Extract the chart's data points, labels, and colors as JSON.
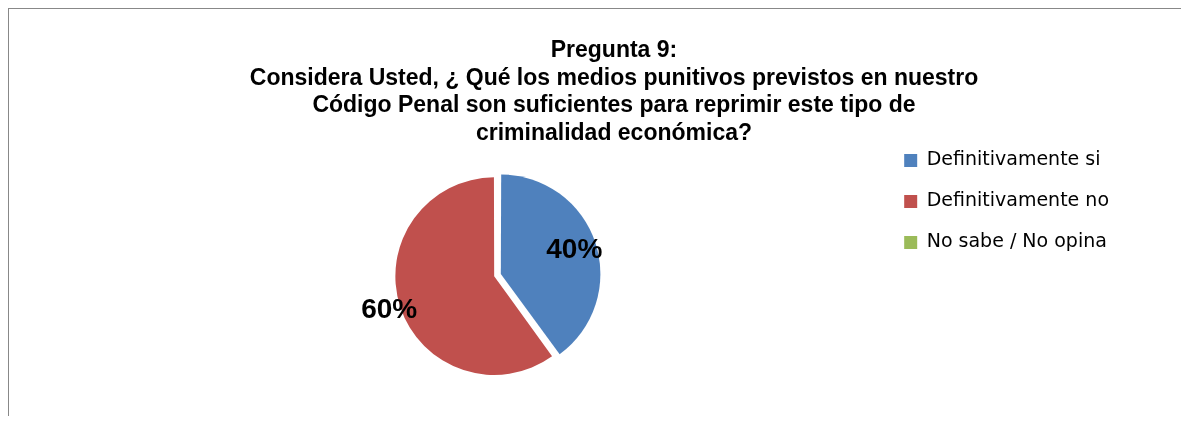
{
  "chart_data": {
    "type": "pie",
    "title": "Pregunta 9:\nConsidera Usted, ¿ Qué los medios punitivos previstos en nuestro\nCódigo Penal son suficientes para reprimir este tipo de\ncriminalidad económica?",
    "categories": [
      "Definitivamente si",
      "Definitivamente no",
      "No sabe / No opina"
    ],
    "values": [
      40,
      60,
      0
    ],
    "colors": [
      "#4f81bd",
      "#c0504d",
      "#9bbb59"
    ],
    "value_labels": [
      "40%",
      "60%",
      null
    ],
    "legend": "right"
  }
}
